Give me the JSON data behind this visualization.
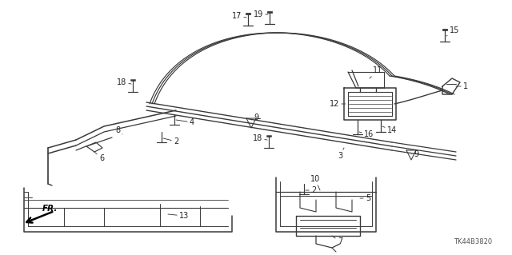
{
  "bg_color": "#ffffff",
  "watermark": "TK44B3820",
  "line_color": "#3a3a3a",
  "label_color": "#222222",
  "label_fontsize": 7.0,
  "lw_main": 1.1,
  "lw_thin": 0.7
}
